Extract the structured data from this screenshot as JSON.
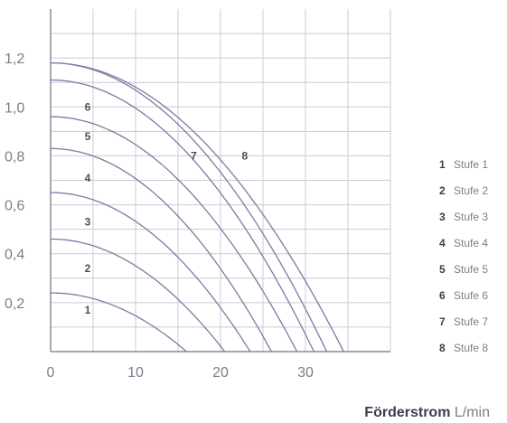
{
  "chart_data": {
    "type": "line",
    "xlim": [
      0,
      40
    ],
    "ylim": [
      0,
      1.4
    ],
    "x_ticks": [
      "0",
      "10",
      "20",
      "30"
    ],
    "y_ticks": [
      "0,2",
      "0,4",
      "0,6",
      "0,8",
      "1,0",
      "1,2"
    ],
    "x_tick_values": [
      0,
      10,
      20,
      30
    ],
    "y_tick_values": [
      0.2,
      0.4,
      0.6,
      0.8,
      1.0,
      1.2
    ],
    "grid": true,
    "x_title_bold": "Förderstrom",
    "x_title_unit": "L/min",
    "series": [
      {
        "name": "Stufe 1",
        "label": "1",
        "y0": 0.24,
        "xmax": 16,
        "label_pos": [
          4,
          0.17
        ]
      },
      {
        "name": "Stufe 2",
        "label": "2",
        "y0": 0.46,
        "xmax": 20.5,
        "label_pos": [
          4,
          0.34
        ]
      },
      {
        "name": "Stufe 3",
        "label": "3",
        "y0": 0.65,
        "xmax": 23.5,
        "label_pos": [
          4,
          0.53
        ]
      },
      {
        "name": "Stufe 4",
        "label": "4",
        "y0": 0.83,
        "xmax": 26,
        "label_pos": [
          4,
          0.71
        ]
      },
      {
        "name": "Stufe 5",
        "label": "5",
        "y0": 0.96,
        "xmax": 29,
        "label_pos": [
          4,
          0.88
        ]
      },
      {
        "name": "Stufe 6",
        "label": "6",
        "y0": 1.11,
        "xmax": 31,
        "label_pos": [
          4,
          1.0
        ]
      },
      {
        "name": "Stufe 7",
        "label": "7",
        "y0": 1.18,
        "xmax": 32.5,
        "label_pos": [
          16.5,
          0.8
        ]
      },
      {
        "name": "Stufe 8",
        "label": "8",
        "y0": 1.18,
        "xmax": 34.5,
        "label_pos": [
          22.5,
          0.8
        ]
      }
    ],
    "line_color": "#7b7ba3",
    "grid_color": "#c9ccd4",
    "axis_color": "#6f7380"
  },
  "legend": [
    {
      "num": "1",
      "text": "Stufe 1"
    },
    {
      "num": "2",
      "text": "Stufe 2"
    },
    {
      "num": "3",
      "text": "Stufe 3"
    },
    {
      "num": "4",
      "text": "Stufe 4"
    },
    {
      "num": "5",
      "text": "Stufe 5"
    },
    {
      "num": "6",
      "text": "Stufe 6"
    },
    {
      "num": "7",
      "text": "Stufe 7"
    },
    {
      "num": "8",
      "text": "Stufe 8"
    }
  ]
}
